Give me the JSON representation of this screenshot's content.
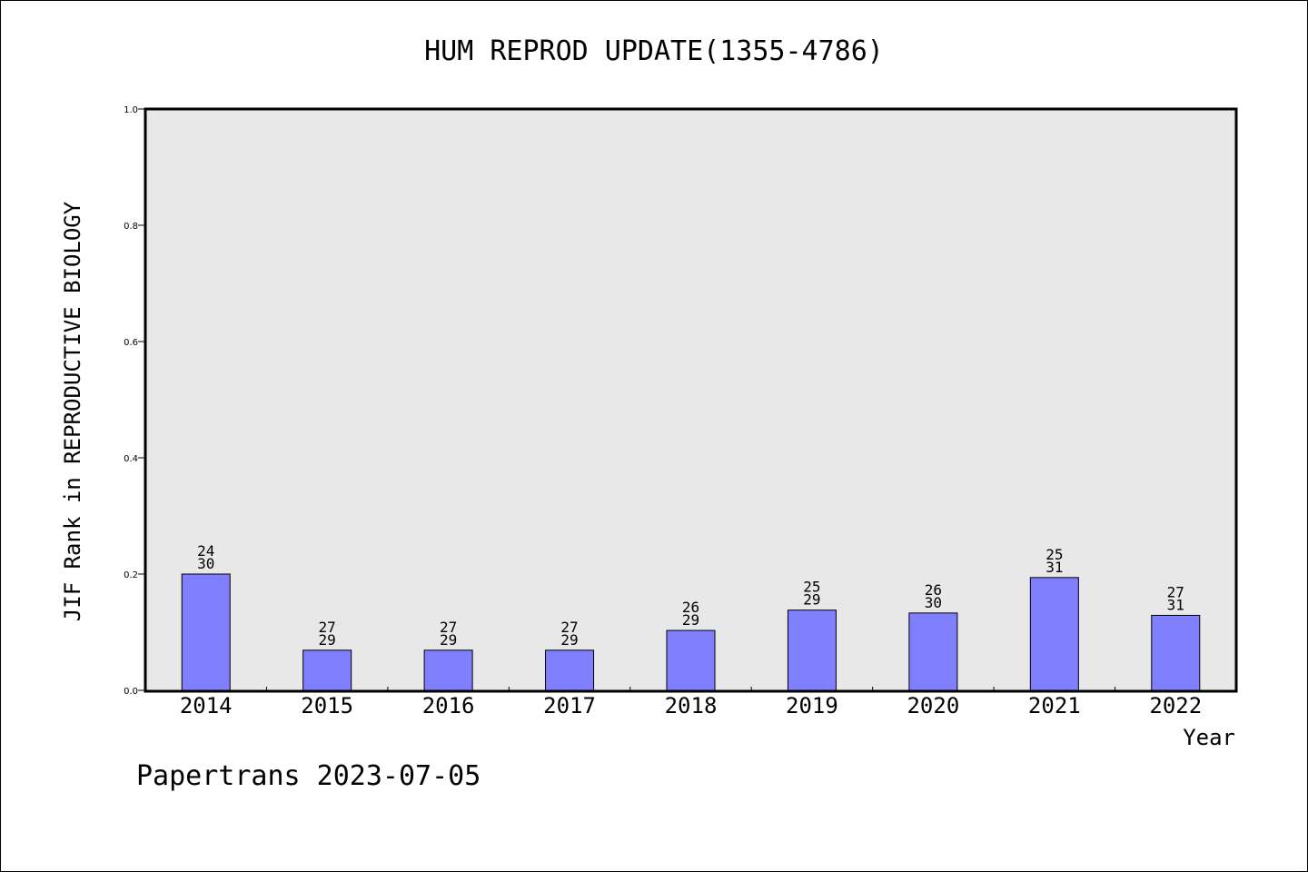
{
  "chart_data": {
    "type": "bar",
    "title": "HUM REPROD UPDATE(1355-4786)",
    "xlabel": "Year",
    "ylabel": "JIF Rank in REPRODUCTIVE BIOLOGY",
    "ylim": [
      0,
      1.0
    ],
    "yticks": [
      "0.0",
      "0.2",
      "0.4",
      "0.6",
      "0.8",
      "1.0"
    ],
    "categories": [
      "2014",
      "2015",
      "2016",
      "2017",
      "2018",
      "2019",
      "2020",
      "2021",
      "2022"
    ],
    "values": [
      0.2,
      0.069,
      0.069,
      0.069,
      0.103,
      0.138,
      0.133,
      0.194,
      0.129
    ],
    "labels": [
      [
        "24",
        "30"
      ],
      [
        "27",
        "29"
      ],
      [
        "27",
        "29"
      ],
      [
        "27",
        "29"
      ],
      [
        "26",
        "29"
      ],
      [
        "25",
        "29"
      ],
      [
        "26",
        "30"
      ],
      [
        "25",
        "31"
      ],
      [
        "27",
        "31"
      ]
    ],
    "bar_color": "#8080ff",
    "plot_bg": "#e8e8e8",
    "grid": false
  },
  "footer": "Papertrans 2023-07-05"
}
